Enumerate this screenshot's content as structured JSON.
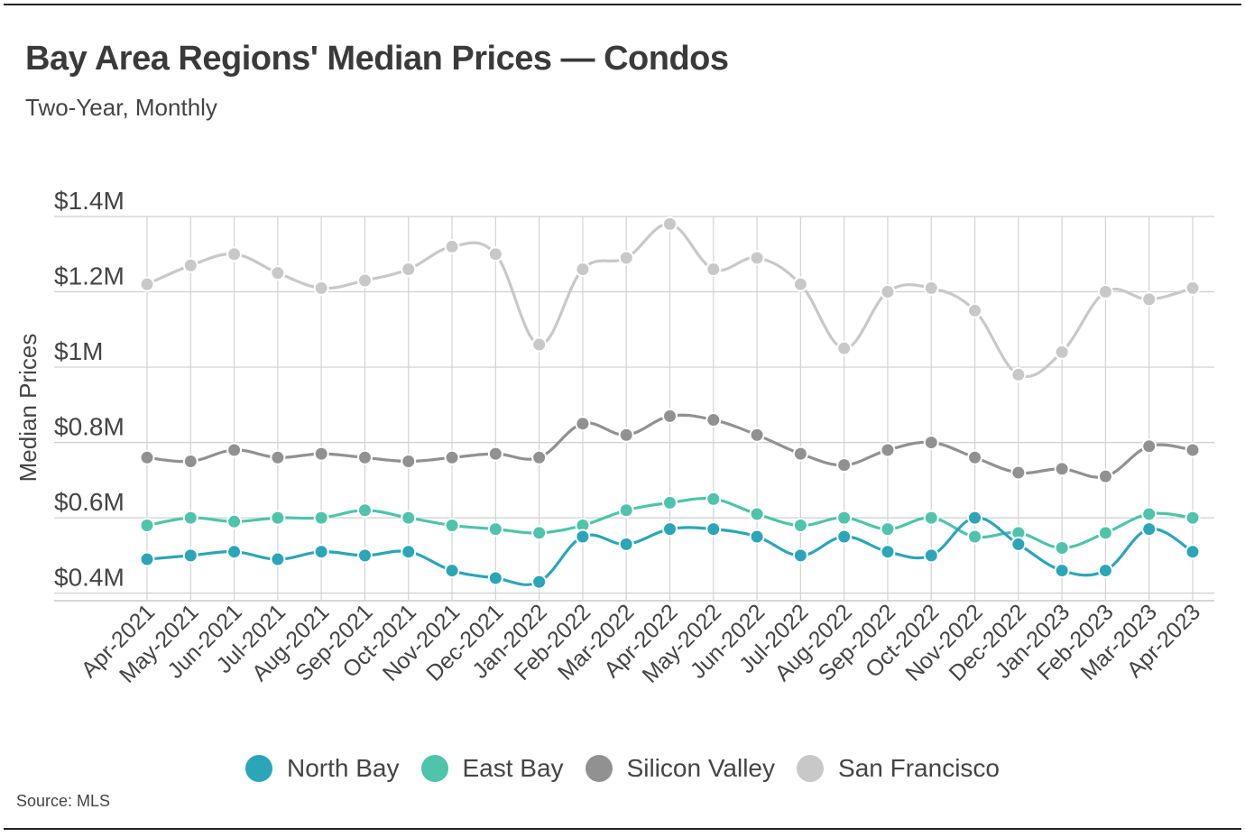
{
  "title": "Bay Area Regions' Median Prices — Condos",
  "subtitle": "Two-Year, Monthly",
  "source": "Source:  MLS",
  "chart_data": {
    "type": "line",
    "title": "Bay Area Regions' Median Prices — Condos",
    "subtitle": "Two-Year, Monthly",
    "xlabel": "",
    "ylabel": "Median Prices",
    "ylim": [
      0.38,
      1.4
    ],
    "yticks": [
      0.4,
      0.6,
      0.8,
      1.0,
      1.2,
      1.4
    ],
    "ytick_labels": [
      "$0.4M",
      "$0.6M",
      "$0.8M",
      "$1M",
      "$1.2M",
      "$1.4M"
    ],
    "grid": true,
    "legend_position": "bottom-center",
    "categories": [
      "Apr-2021",
      "May-2021",
      "Jun-2021",
      "Jul-2021",
      "Aug-2021",
      "Sep-2021",
      "Oct-2021",
      "Nov-2021",
      "Dec-2021",
      "Jan-2022",
      "Feb-2022",
      "Mar-2022",
      "Apr-2022",
      "May-2022",
      "Jun-2022",
      "Jul-2022",
      "Aug-2022",
      "Sep-2022",
      "Oct-2022",
      "Nov-2022",
      "Dec-2022",
      "Jan-2023",
      "Feb-2023",
      "Mar-2023",
      "Apr-2023"
    ],
    "series": [
      {
        "name": "North Bay",
        "color": "#2aa6b8",
        "values": [
          0.49,
          0.5,
          0.51,
          0.49,
          0.51,
          0.5,
          0.51,
          0.46,
          0.44,
          0.43,
          0.55,
          0.53,
          0.57,
          0.57,
          0.55,
          0.5,
          0.55,
          0.51,
          0.5,
          0.6,
          0.53,
          0.46,
          0.46,
          0.57,
          0.51
        ]
      },
      {
        "name": "East Bay",
        "color": "#4ec4aa",
        "values": [
          0.58,
          0.6,
          0.59,
          0.6,
          0.6,
          0.62,
          0.6,
          0.58,
          0.57,
          0.56,
          0.58,
          0.62,
          0.64,
          0.65,
          0.61,
          0.58,
          0.6,
          0.57,
          0.6,
          0.55,
          0.56,
          0.52,
          0.56,
          0.61,
          0.6
        ]
      },
      {
        "name": "Silicon Valley",
        "color": "#919191",
        "values": [
          0.76,
          0.75,
          0.78,
          0.76,
          0.77,
          0.76,
          0.75,
          0.76,
          0.77,
          0.76,
          0.85,
          0.82,
          0.87,
          0.86,
          0.82,
          0.77,
          0.74,
          0.78,
          0.8,
          0.76,
          0.72,
          0.73,
          0.71,
          0.79,
          0.78
        ]
      },
      {
        "name": "San Francisco",
        "color": "#c8c8c8",
        "values": [
          1.22,
          1.27,
          1.3,
          1.25,
          1.21,
          1.23,
          1.26,
          1.32,
          1.3,
          1.06,
          1.26,
          1.29,
          1.38,
          1.26,
          1.29,
          1.22,
          1.05,
          1.2,
          1.21,
          1.15,
          0.98,
          1.04,
          1.2,
          1.18,
          1.21
        ]
      }
    ]
  }
}
